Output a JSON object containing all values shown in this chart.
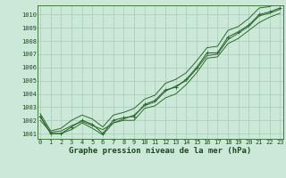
{
  "title": "Graphe pression niveau de la mer (hPa)",
  "x_labels": [
    "0",
    "1",
    "2",
    "3",
    "4",
    "5",
    "6",
    "7",
    "8",
    "9",
    "10",
    "11",
    "12",
    "13",
    "14",
    "15",
    "16",
    "17",
    "18",
    "19",
    "20",
    "21",
    "22",
    "23"
  ],
  "x_values": [
    0,
    1,
    2,
    3,
    4,
    5,
    6,
    7,
    8,
    9,
    10,
    11,
    12,
    13,
    14,
    15,
    16,
    17,
    18,
    19,
    20,
    21,
    22,
    23
  ],
  "pressure_main": [
    1002.3,
    1001.0,
    1001.0,
    1001.5,
    1002.0,
    1001.7,
    1001.0,
    1002.0,
    1002.2,
    1002.3,
    1003.2,
    1003.5,
    1004.3,
    1004.5,
    1005.1,
    1006.0,
    1007.1,
    1007.1,
    1008.3,
    1008.7,
    1009.2,
    1010.0,
    1010.2,
    1010.5
  ],
  "pressure_min": [
    1002.3,
    1001.0,
    1001.0,
    1001.3,
    1001.8,
    1001.4,
    1000.9,
    1001.8,
    1002.0,
    1002.0,
    1002.9,
    1003.1,
    1003.7,
    1004.0,
    1004.7,
    1005.6,
    1006.7,
    1006.8,
    1007.8,
    1008.2,
    1008.8,
    1009.4,
    1009.8,
    1010.1
  ],
  "pressure_max": [
    1002.5,
    1001.2,
    1001.4,
    1002.0,
    1002.4,
    1002.1,
    1001.5,
    1002.4,
    1002.6,
    1002.9,
    1003.6,
    1003.9,
    1004.8,
    1005.1,
    1005.6,
    1006.5,
    1007.5,
    1007.6,
    1008.8,
    1009.1,
    1009.7,
    1010.5,
    1010.6,
    1011.0
  ],
  "pressure_smooth": [
    1002.0,
    1001.1,
    1001.2,
    1001.6,
    1001.9,
    1001.6,
    1001.3,
    1001.8,
    1002.1,
    1002.4,
    1003.1,
    1003.4,
    1004.2,
    1004.6,
    1005.0,
    1005.9,
    1006.9,
    1007.0,
    1008.1,
    1008.6,
    1009.1,
    1009.9,
    1010.1,
    1010.4
  ],
  "ylim": [
    1000.6,
    1010.7
  ],
  "yticks": [
    1001,
    1002,
    1003,
    1004,
    1005,
    1006,
    1007,
    1008,
    1009,
    1010
  ],
  "line_color": "#2d6a2d",
  "bg_color": "#cce8d8",
  "grid_color": "#aaccbb",
  "title_color": "#1a4a1a",
  "title_fontsize": 6.5,
  "tick_fontsize": 5.0
}
